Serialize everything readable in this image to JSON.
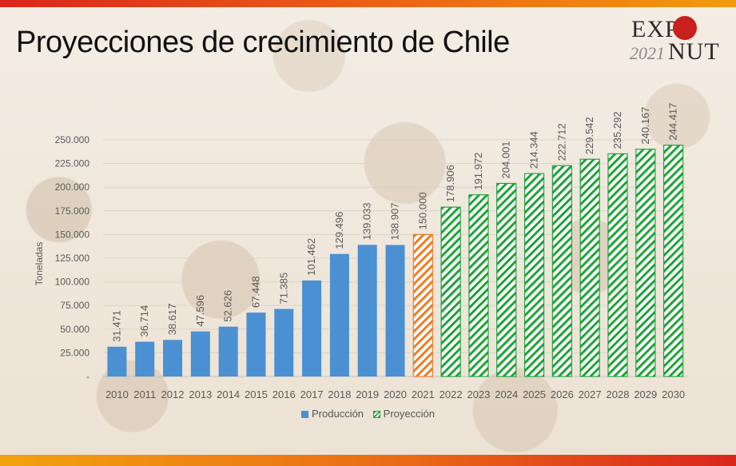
{
  "title": "Proyecciones de crecimiento de Chile",
  "logo": {
    "expo": "EXPO",
    "nut": "NUT",
    "year": "2021"
  },
  "colors": {
    "produccion": "#4a90d2",
    "proyeccion_2021": "#ee7d27",
    "proyeccion": "#21a33a",
    "text": "#595959"
  },
  "legend": {
    "produccion": "Producción",
    "proyeccion": "Proyección"
  },
  "chart_data": {
    "type": "bar",
    "ylabel": "Toneladas",
    "ylim": [
      0,
      250000
    ],
    "y_ticks": [
      0,
      25000,
      50000,
      75000,
      100000,
      125000,
      150000,
      175000,
      200000,
      225000,
      250000
    ],
    "y_tick_labels": [
      "-",
      "25.000",
      "50.000",
      "75.000",
      "100.000",
      "125.000",
      "150.000",
      "175.000",
      "200.000",
      "225.000",
      "250.000"
    ],
    "categories": [
      "2010",
      "2011",
      "2012",
      "2013",
      "2014",
      "2015",
      "2016",
      "2017",
      "2018",
      "2019",
      "2020",
      "2021",
      "2022",
      "2023",
      "2024",
      "2025",
      "2026",
      "2027",
      "2028",
      "2029",
      "2030"
    ],
    "series": [
      {
        "name": "Producción",
        "style": "solid",
        "values": [
          31471,
          36714,
          38617,
          47596,
          52626,
          67448,
          71385,
          101462,
          129496,
          139033,
          138907,
          null,
          null,
          null,
          null,
          null,
          null,
          null,
          null,
          null,
          null
        ]
      },
      {
        "name": "Proyección",
        "style": "hatched",
        "values": [
          null,
          null,
          null,
          null,
          null,
          null,
          null,
          null,
          null,
          null,
          null,
          150000,
          178906,
          191972,
          204001,
          214344,
          222712,
          229542,
          235292,
          240167,
          244417
        ]
      }
    ],
    "data_labels": [
      "31.471",
      "36.714",
      "38.617",
      "47.596",
      "52.626",
      "67.448",
      "71.385",
      "101.462",
      "129.496",
      "139.033",
      "138.907",
      "150.000",
      "178.906",
      "191.972",
      "204.001",
      "214.344",
      "222.712",
      "229.542",
      "235.292",
      "240.167",
      "244.417"
    ],
    "grid": true,
    "legend_position": "bottom"
  }
}
